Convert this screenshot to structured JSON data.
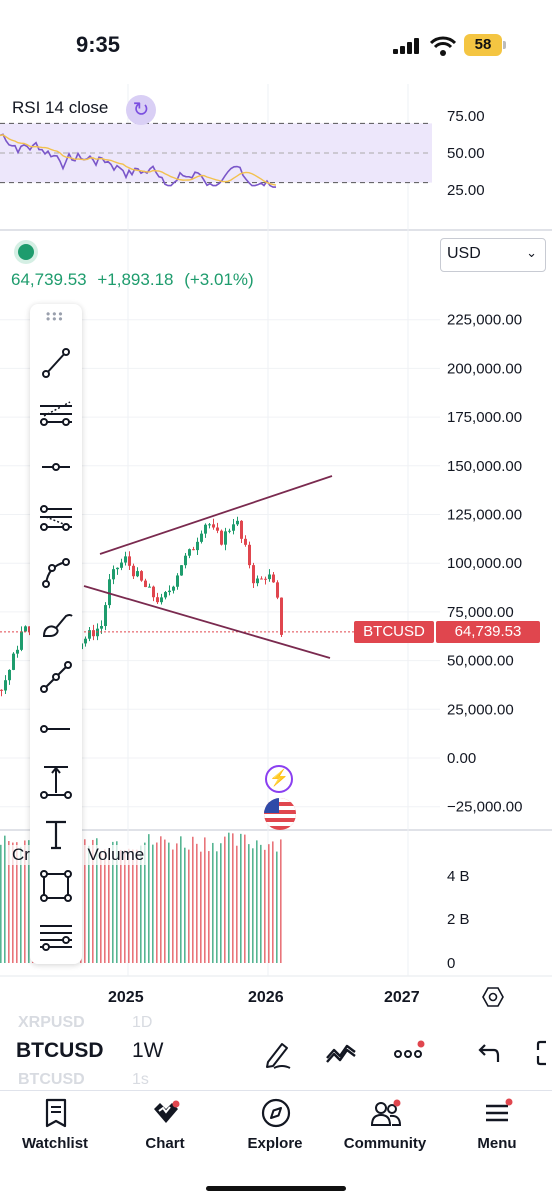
{
  "status_bar": {
    "time": "9:35",
    "battery": "58"
  },
  "rsi": {
    "legend": "RSI 14 close",
    "levels": [
      "75.00",
      "50.00",
      "25.00"
    ]
  },
  "price_info": {
    "price": "64,739.53",
    "change": "+1,893.18",
    "change_pct": "(+3.01%)"
  },
  "currency": {
    "selected": "USD"
  },
  "price_axis": [
    "225,000.00",
    "200,000.00",
    "175,000.00",
    "150,000.00",
    "125,000.00",
    "100,000.00",
    "75,000.00",
    "50,000.00",
    "25,000.00",
    "0.00",
    "−25,000.00"
  ],
  "last_price": {
    "ticker": "BTCUSD",
    "value": "64,739.53"
  },
  "volume": {
    "legend": "Cr…USD Volume",
    "levels": [
      "4 B",
      "2 B",
      "0"
    ]
  },
  "time_axis": [
    "2025",
    "2026",
    "2027"
  ],
  "toolbar": {
    "tools": [
      "trend-line",
      "pitchfork",
      "horizontal-ray",
      "parallel-channel",
      "path",
      "brush",
      "fib",
      "horizontal-line",
      "measure",
      "text",
      "rectangle",
      "more-lines"
    ]
  },
  "symbol_bar": {
    "prev_symbol": "XRPUSD",
    "prev_interval": "1D",
    "symbol": "BTCUSD",
    "interval": "1W",
    "next_symbol": "BTCUSD",
    "next_interval": "1s"
  },
  "nav": {
    "watchlist": "Watchlist",
    "chart": "Chart",
    "explore": "Explore",
    "community": "Community",
    "menu": "Menu"
  },
  "colors": {
    "up": "#1e9c6d",
    "down": "#e0464e",
    "rsi_line": "#7a56c9",
    "rsi_ma": "#f2c14e",
    "channel": "#7a2a4f"
  }
}
